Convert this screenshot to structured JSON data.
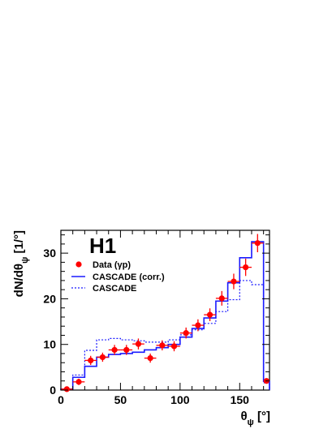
{
  "chart_data": {
    "type": "histogram",
    "experiment_label": "H1",
    "xlabel": "θ_ψ [°]",
    "ylabel": "dN/dθ_ψ [1/°]",
    "xlim": [
      0,
      175
    ],
    "ylim": [
      0,
      35
    ],
    "x_ticks": [
      "0",
      "50",
      "100",
      "150"
    ],
    "y_ticks": [
      "0",
      "10",
      "20",
      "30"
    ],
    "bin_edges": [
      0,
      10,
      20,
      30,
      40,
      50,
      60,
      70,
      80,
      90,
      100,
      110,
      120,
      130,
      140,
      150,
      160,
      170,
      175
    ],
    "series": [
      {
        "name": "Data (γp)",
        "style": "points",
        "color": "#ff0000",
        "x": [
          5,
          15,
          25,
          35,
          45,
          55,
          65,
          75,
          85,
          95,
          105,
          115,
          125,
          135,
          145,
          155,
          165,
          172.5
        ],
        "values": [
          0.2,
          1.8,
          6.5,
          7.2,
          8.8,
          8.8,
          10.1,
          7.0,
          9.8,
          9.6,
          12.5,
          14.2,
          16.5,
          20.1,
          23.8,
          26.9,
          32.2,
          2.0
        ],
        "errors": [
          0.2,
          0.7,
          1.0,
          1.0,
          1.1,
          1.1,
          1.2,
          1.0,
          1.1,
          1.1,
          1.2,
          1.3,
          1.4,
          1.6,
          1.7,
          1.9,
          2.0,
          0.5
        ]
      },
      {
        "name": "CASCADE (corr.)",
        "style": "solid",
        "color": "#1a1aff",
        "values": [
          0.2,
          2.8,
          5.2,
          7.2,
          7.8,
          8.0,
          8.3,
          8.8,
          9.3,
          10.0,
          11.6,
          13.5,
          15.8,
          19.5,
          23.5,
          29.0,
          32.5,
          1.9
        ]
      },
      {
        "name": "CASCADE",
        "style": "dashed",
        "color": "#1a1aff",
        "values": [
          0.2,
          3.3,
          8.7,
          11.0,
          11.3,
          11.0,
          10.8,
          10.5,
          10.5,
          11.0,
          12.1,
          13.2,
          14.6,
          17.2,
          19.8,
          24.0,
          23.1,
          1.6
        ]
      }
    ]
  }
}
